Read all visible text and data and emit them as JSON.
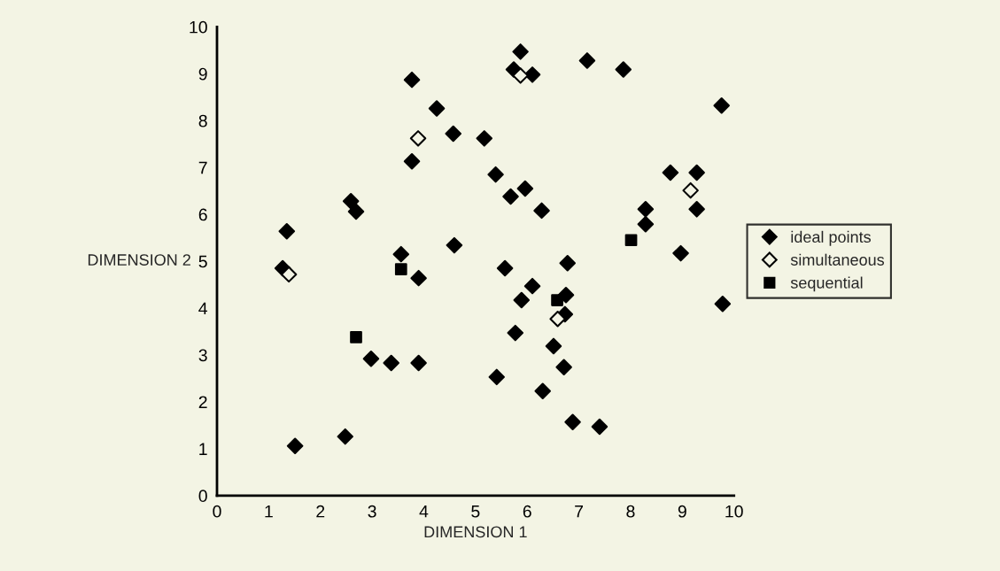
{
  "chart_data": {
    "type": "scatter",
    "xlabel": "DIMENSION 1",
    "ylabel": "DIMENSION 2",
    "xlim": [
      0,
      10
    ],
    "ylim": [
      0,
      10
    ],
    "xticks": [
      0,
      1,
      2,
      3,
      4,
      5,
      6,
      7,
      8,
      9,
      10
    ],
    "yticks": [
      0,
      1,
      2,
      3,
      4,
      5,
      6,
      7,
      8,
      9,
      10
    ],
    "grid": false,
    "legend": "right",
    "series": [
      {
        "name": "ideal points",
        "color": "#000000",
        "marker": "diamond",
        "x": [
          3.77,
          4.25,
          4.57,
          3.77,
          2.59,
          2.69,
          1.35,
          4.59,
          3.56,
          3.9,
          1.27,
          5.87,
          5.74,
          6.1,
          7.16,
          7.86,
          9.76,
          5.17,
          5.39,
          5.96,
          5.68,
          6.28,
          8.77,
          9.28,
          9.28,
          8.29,
          8.29,
          8.97,
          5.57,
          6.78,
          6.1,
          5.89,
          6.75,
          6.73,
          5.77,
          6.51,
          6.71,
          5.41,
          6.3,
          6.88,
          7.4,
          9.78,
          2.98,
          3.37,
          3.9,
          2.48,
          1.51
        ],
        "values": [
          8.87,
          8.26,
          7.72,
          7.13,
          6.28,
          6.06,
          5.64,
          5.34,
          5.15,
          4.64,
          4.85,
          9.47,
          9.09,
          8.98,
          9.28,
          9.09,
          8.32,
          7.62,
          6.85,
          6.55,
          6.38,
          6.08,
          6.89,
          6.89,
          6.11,
          6.11,
          5.79,
          5.17,
          4.85,
          4.96,
          4.47,
          4.17,
          4.28,
          3.87,
          3.47,
          3.19,
          2.74,
          2.53,
          2.23,
          1.57,
          1.47,
          4.09,
          2.92,
          2.83,
          2.83,
          1.26,
          1.06
        ]
      },
      {
        "name": "simultaneous",
        "color": "#f3f4e4",
        "marker": "diamond",
        "x": [
          3.89,
          1.39,
          5.87,
          9.16,
          6.59
        ],
        "values": [
          7.62,
          4.72,
          8.96,
          6.51,
          3.77
        ]
      },
      {
        "name": "sequential",
        "color": "#000000",
        "marker": "square",
        "x": [
          2.69,
          3.56,
          6.58,
          8.01
        ],
        "values": [
          3.38,
          4.83,
          4.17,
          5.45
        ]
      }
    ]
  }
}
